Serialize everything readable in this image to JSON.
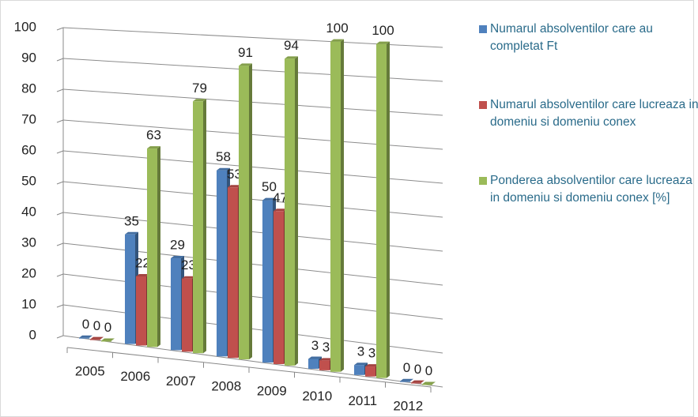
{
  "chart_data": {
    "type": "bar3d",
    "categories": [
      "2005",
      "2006",
      "2007",
      "2008",
      "2009",
      "2010",
      "2011",
      "2012"
    ],
    "series": [
      {
        "name": "Numarul absolventilor care au completat Ft",
        "color": "#4f81bd",
        "values": [
          0,
          35,
          29,
          58,
          50,
          3,
          3,
          0
        ]
      },
      {
        "name": "Numarul absolventilor care lucreaza in domeniu si domeniu conex",
        "color": "#c0504d",
        "values": [
          0,
          22,
          23,
          53,
          47,
          3,
          3,
          0
        ]
      },
      {
        "name": "Ponderea absolventilor care  lucreaza in domeniu si domeniu conex [%]",
        "color": "#9bbb59",
        "values": [
          0,
          63,
          79,
          91,
          94,
          100,
          100,
          0
        ]
      }
    ],
    "ylim": [
      0,
      100
    ],
    "yticks": [
      0,
      10,
      20,
      30,
      40,
      50,
      60,
      70,
      80,
      90,
      100
    ],
    "grid": true,
    "legend": "right"
  }
}
